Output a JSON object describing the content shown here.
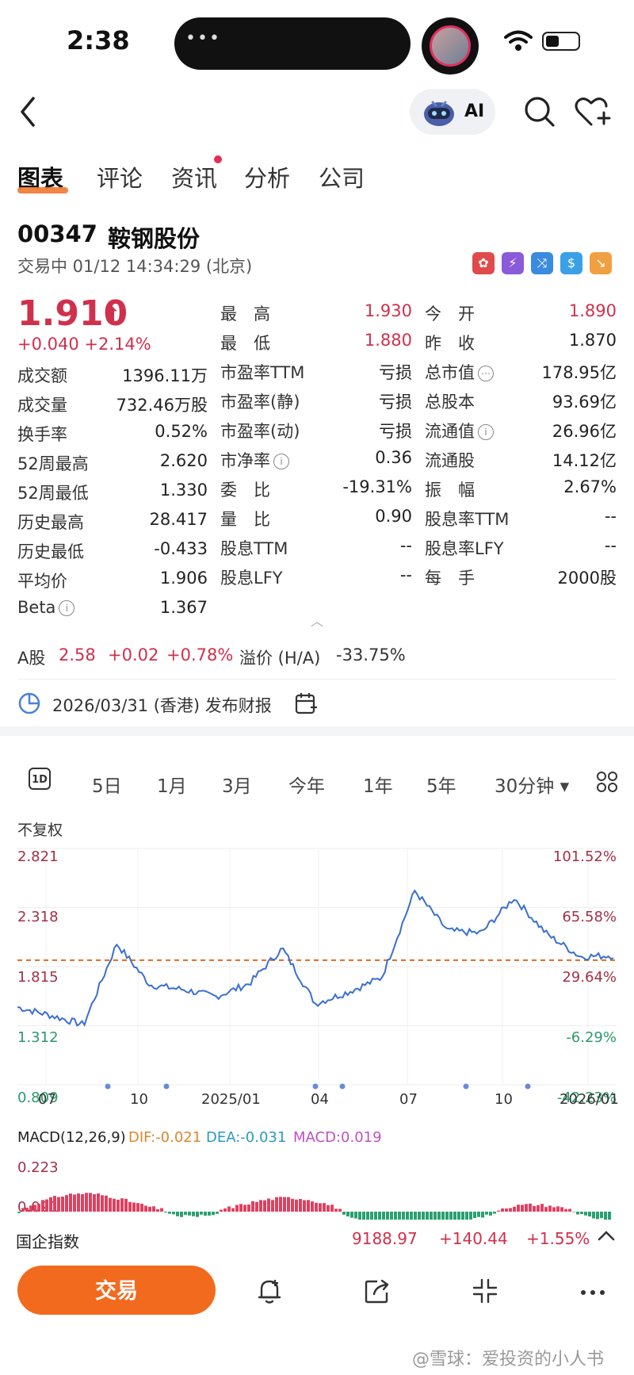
{
  "status_bar": {
    "time": "2:38"
  },
  "header": {
    "ai_label": "AI"
  },
  "tabs": [
    {
      "label": "图表",
      "active": true
    },
    {
      "label": "评论"
    },
    {
      "label": "资讯"
    },
    {
      "label": "分析"
    },
    {
      "label": "公司"
    }
  ],
  "stock": {
    "code": "00347",
    "name": "鞍钢股份",
    "status": "交易中 01/12 14:34:29 (北京)",
    "price": "1.910",
    "change": "+0.040",
    "change_pct": "+2.14%"
  },
  "stats_left": [
    {
      "label": "成交额",
      "value": "1396.11万"
    },
    {
      "label": "成交量",
      "value": "732.46万股"
    },
    {
      "label": "换手率",
      "value": "0.52%"
    },
    {
      "label": "52周最高",
      "value": "2.620"
    },
    {
      "label": "52周最低",
      "value": "1.330"
    },
    {
      "label": "历史最高",
      "value": "28.417"
    },
    {
      "label": "历史最低",
      "value": "-0.433"
    },
    {
      "label": "平均价",
      "value": "1.906"
    },
    {
      "label": "Beta",
      "value": "1.367"
    }
  ],
  "stats_mid": [
    {
      "label": "最　高",
      "value": "1.930"
    },
    {
      "label": "最　低",
      "value": "1.880"
    },
    {
      "label": "市盈率TTM",
      "value": "亏损"
    },
    {
      "label": "市盈率(静)",
      "value": "亏损"
    },
    {
      "label": "市盈率(动)",
      "value": "亏损"
    },
    {
      "label": "市净率",
      "value": "0.36"
    },
    {
      "label": "委　比",
      "value": "-19.31%"
    },
    {
      "label": "量　比",
      "value": "0.90"
    },
    {
      "label": "股息TTM",
      "value": "--"
    },
    {
      "label": "股息LFY",
      "value": "--"
    }
  ],
  "stats_right": [
    {
      "label": "今　开",
      "value": "1.890"
    },
    {
      "label": "昨　收",
      "value": "1.870"
    },
    {
      "label": "总市值",
      "value": "178.95亿"
    },
    {
      "label": "总股本",
      "value": "93.69亿"
    },
    {
      "label": "流通值",
      "value": "26.96亿"
    },
    {
      "label": "流通股",
      "value": "14.12亿"
    },
    {
      "label": "振　幅",
      "value": "2.67%"
    },
    {
      "label": "股息率TTM",
      "value": "--"
    },
    {
      "label": "股息率LFY",
      "value": "--"
    },
    {
      "label": "每　手",
      "value": "2000股"
    }
  ],
  "a_share": {
    "label": "A股",
    "price": "2.58",
    "change": "+0.02",
    "pct": "+0.78%",
    "premium_label": "溢价 (H/A)",
    "premium": "-33.75%"
  },
  "report": {
    "text": "2026/03/31 (香港) 发布财报"
  },
  "periods": [
    "1D",
    "5日",
    "1月",
    "3月",
    "今年",
    "1年",
    "5年",
    "30分钟"
  ],
  "chart": {
    "adjust_label": "不复权",
    "y_left": [
      "2.821",
      "2.318",
      "1.815",
      "1.312",
      "0.809"
    ],
    "y_right": [
      "101.52%",
      "65.58%",
      "29.64%",
      "-6.29%",
      "-42.23%"
    ],
    "x_ticks": [
      "07",
      "10",
      "2025/01",
      "04",
      "07",
      "10",
      "2026/01"
    ]
  },
  "chart_data": {
    "type": "line",
    "x": [
      "2024/07",
      "2024/08",
      "2024/09",
      "2024/10",
      "2024/11",
      "2024/12",
      "2025/01",
      "2025/02",
      "2025/03",
      "2025/04",
      "2025/05",
      "2025/06",
      "2025/07",
      "2025/08",
      "2025/09",
      "2025/10",
      "2025/11",
      "2025/12",
      "2026/01"
    ],
    "series": [
      {
        "values": [
          1.47,
          1.4,
          1.32,
          2.01,
          1.66,
          1.62,
          1.56,
          1.67,
          1.97,
          1.5,
          1.6,
          1.72,
          2.46,
          2.12,
          2.1,
          2.4,
          2.09,
          1.9,
          1.91
        ]
      }
    ],
    "ylim": [
      0.809,
      2.821
    ],
    "reference_price": 1.87
  },
  "macd": {
    "title": "MACD(12,26,9)",
    "dif": "DIF:-0.021",
    "dea": "DEA:-0.031",
    "macd": "MACD:0.019",
    "y_top": "0.223",
    "y_mid": "0.021"
  },
  "index_bar": {
    "name": "国企指数",
    "value": "9188.97",
    "change": "+140.44",
    "pct": "+1.55%"
  },
  "bottom": {
    "trade_label": "交易"
  },
  "watermark": "@雪球：爱投资的小人书"
}
